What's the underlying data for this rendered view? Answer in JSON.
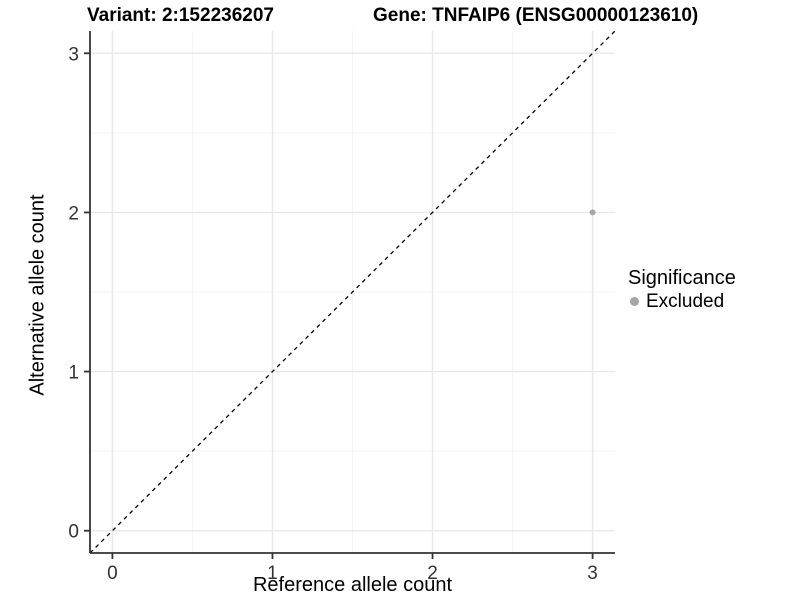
{
  "titles": {
    "left": "Variant: 2:152236207",
    "right": "Gene: TNFAIP6 (ENSG00000123610)"
  },
  "chart_data": {
    "type": "scatter",
    "title_left": "Variant: 2:152236207",
    "title_right": "Gene: TNFAIP6 (ENSG00000123610)",
    "xlabel": "Reference allele count",
    "ylabel": "Alternative allele count",
    "xlim": [
      -0.14,
      3.14
    ],
    "ylim": [
      -0.14,
      3.14
    ],
    "xticks": [
      0,
      1,
      2,
      3
    ],
    "yticks": [
      0,
      1,
      2,
      3
    ],
    "minor_ticks": [
      0.5,
      1.5,
      2.5
    ],
    "grid": true,
    "reference_line": {
      "type": "identity y=x",
      "style": "dashed",
      "color": "#000000"
    },
    "series": [
      {
        "name": "Excluded",
        "color": "#A6A6A6",
        "points": [
          {
            "x": 3,
            "y": 2
          }
        ]
      }
    ],
    "legend": {
      "title": "Significance",
      "position": "right",
      "items": [
        {
          "label": "Excluded",
          "color": "#A6A6A6"
        }
      ]
    },
    "colors": {
      "grid_major": "#E8E8E8",
      "grid_minor": "#F3F3F3",
      "axis_line": "#333333",
      "tick_label": "#333333",
      "point": "#A6A6A6"
    }
  }
}
